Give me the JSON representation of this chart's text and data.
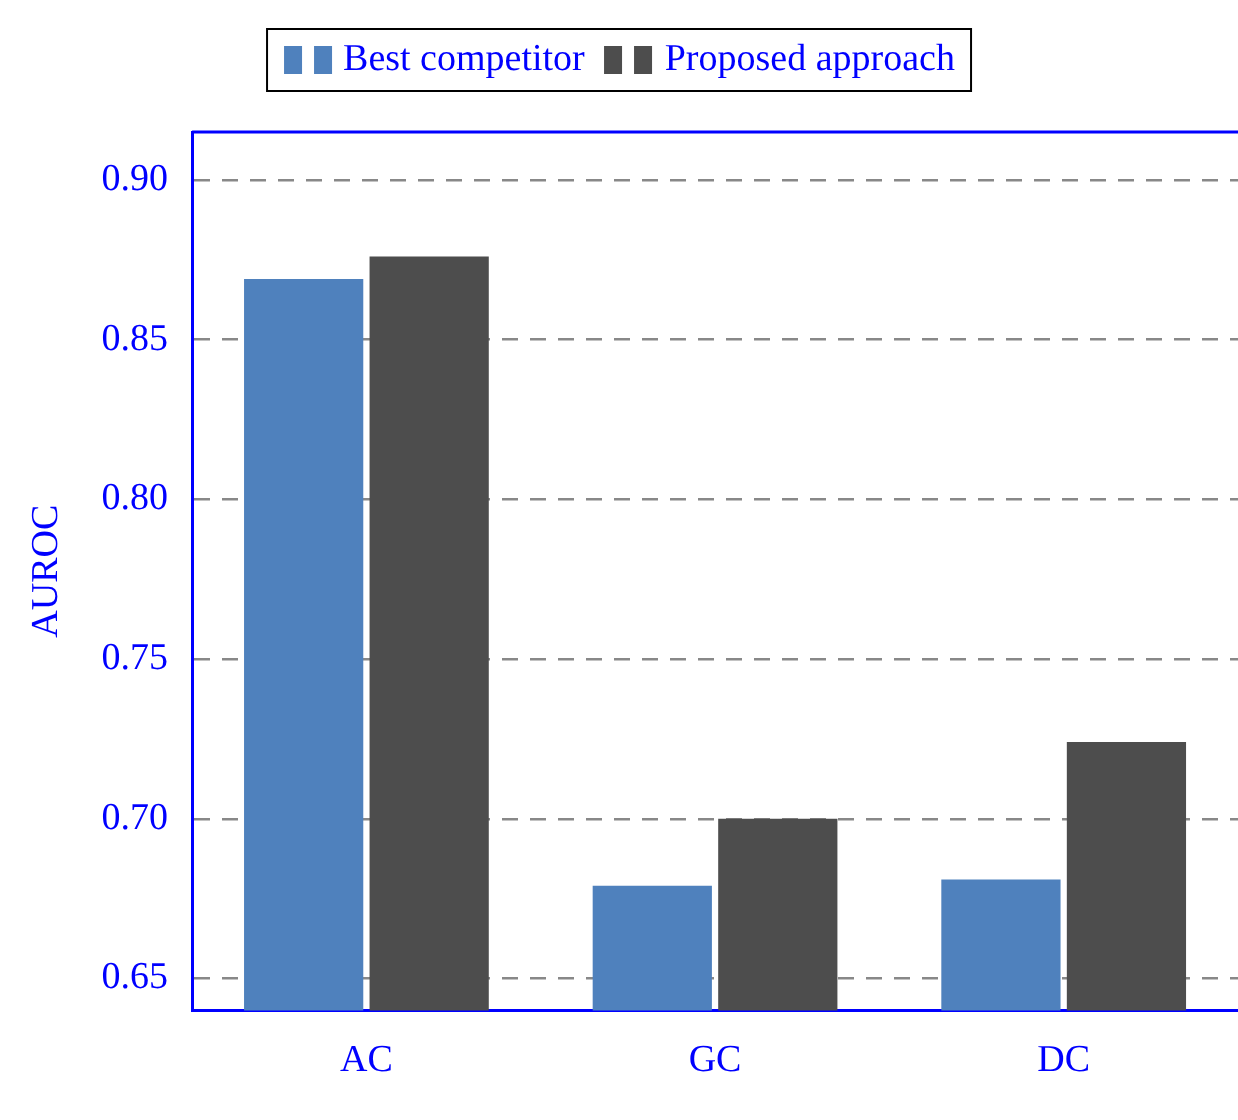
{
  "chart_data": {
    "type": "bar",
    "ylabel": "AUROC",
    "categories": [
      "AC",
      "GC",
      "DC"
    ],
    "series": [
      {
        "name": "Best competitor",
        "color": "#4f81bd",
        "values": [
          0.869,
          0.679,
          0.681
        ]
      },
      {
        "name": "Proposed approach",
        "color": "#4d4d4d",
        "values": [
          0.876,
          0.7,
          0.724
        ]
      }
    ],
    "ylim": [
      0.64,
      0.915
    ],
    "yticks": [
      {
        "value": 0.65,
        "label": "0.65"
      },
      {
        "value": 0.7,
        "label": "0.70"
      },
      {
        "value": 0.75,
        "label": "0.75"
      },
      {
        "value": 0.8,
        "label": "0.80"
      },
      {
        "value": 0.85,
        "label": "0.85"
      },
      {
        "value": 0.9,
        "label": "0.90"
      }
    ],
    "grid": "y",
    "legend": "top"
  }
}
